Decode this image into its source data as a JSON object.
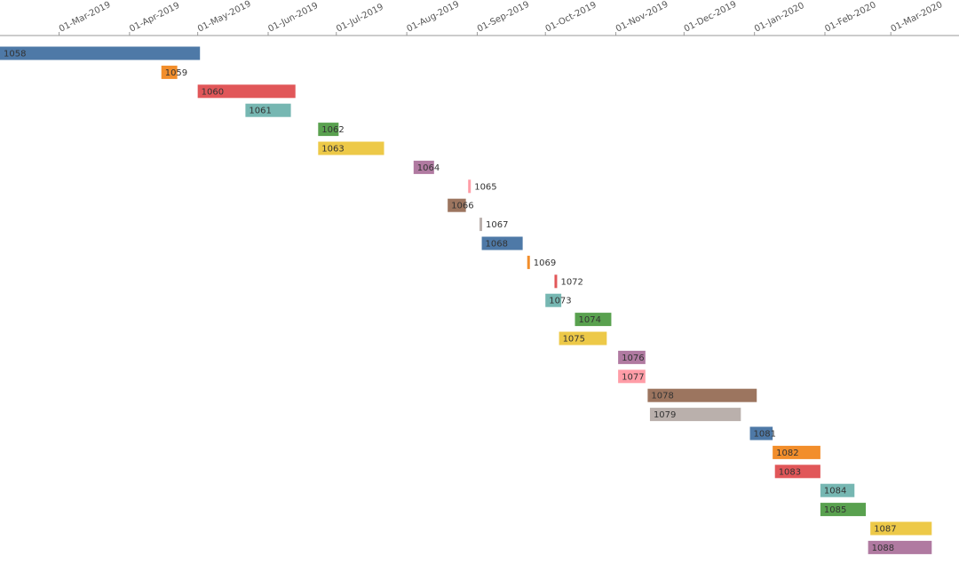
{
  "chart_data": {
    "type": "gantt",
    "title": "",
    "xlabel": "",
    "ylabel": "",
    "x_axis": {
      "type": "date",
      "position": "top",
      "range": [
        "2019-02-03",
        "2020-03-31"
      ],
      "tick_labels": [
        {
          "label": "01-Mar-2019",
          "date": "2019-03-01"
        },
        {
          "label": "01-Apr-2019",
          "date": "2019-04-01"
        },
        {
          "label": "01-May-2019",
          "date": "2019-05-01"
        },
        {
          "label": "01-Jun-2019",
          "date": "2019-06-01"
        },
        {
          "label": "01-Jul-2019",
          "date": "2019-07-01"
        },
        {
          "label": "01-Aug-2019",
          "date": "2019-08-01"
        },
        {
          "label": "01-Sep-2019",
          "date": "2019-09-01"
        },
        {
          "label": "01-Oct-2019",
          "date": "2019-10-01"
        },
        {
          "label": "01-Nov-2019",
          "date": "2019-11-01"
        },
        {
          "label": "01-Dec-2019",
          "date": "2019-12-01"
        },
        {
          "label": "01-Jan-2020",
          "date": "2020-01-01"
        },
        {
          "label": "01-Feb-2020",
          "date": "2020-02-01"
        },
        {
          "label": "01-Mar-2020",
          "date": "2020-03-01"
        }
      ]
    },
    "grid": false,
    "legend": "none",
    "tasks": [
      {
        "label": "1058",
        "start": "2019-02-03",
        "end": "2019-05-02",
        "color": "#4e79a7"
      },
      {
        "label": "1059",
        "start": "2019-04-15",
        "end": "2019-04-22",
        "color": "#f28e2b"
      },
      {
        "label": "1060",
        "start": "2019-05-01",
        "end": "2019-06-13",
        "color": "#e15759"
      },
      {
        "label": "1061",
        "start": "2019-05-22",
        "end": "2019-06-11",
        "color": "#76b7b2"
      },
      {
        "label": "1062",
        "start": "2019-06-23",
        "end": "2019-07-02",
        "color": "#59a14f"
      },
      {
        "label": "1063",
        "start": "2019-06-23",
        "end": "2019-07-22",
        "color": "#edc948"
      },
      {
        "label": "1064",
        "start": "2019-08-04",
        "end": "2019-08-13",
        "color": "#b07aa1"
      },
      {
        "label": "1065",
        "start": "2019-08-28",
        "end": "2019-08-29",
        "color": "#ff9da7"
      },
      {
        "label": "1066",
        "start": "2019-08-19",
        "end": "2019-08-27",
        "color": "#9c755f"
      },
      {
        "label": "1067",
        "start": "2019-09-02",
        "end": "2019-09-03",
        "color": "#bab0ac"
      },
      {
        "label": "1068",
        "start": "2019-09-03",
        "end": "2019-09-21",
        "color": "#4e79a7"
      },
      {
        "label": "1069",
        "start": "2019-09-23",
        "end": "2019-09-24",
        "color": "#f28e2b"
      },
      {
        "label": "1072",
        "start": "2019-10-05",
        "end": "2019-10-06",
        "color": "#e15759"
      },
      {
        "label": "1073",
        "start": "2019-10-01",
        "end": "2019-10-08",
        "color": "#76b7b2"
      },
      {
        "label": "1074",
        "start": "2019-10-14",
        "end": "2019-10-30",
        "color": "#59a14f"
      },
      {
        "label": "1075",
        "start": "2019-10-07",
        "end": "2019-10-28",
        "color": "#edc948"
      },
      {
        "label": "1076",
        "start": "2019-11-02",
        "end": "2019-11-14",
        "color": "#b07aa1"
      },
      {
        "label": "1077",
        "start": "2019-11-02",
        "end": "2019-11-14",
        "color": "#ff9da7"
      },
      {
        "label": "1078",
        "start": "2019-11-15",
        "end": "2020-01-02",
        "color": "#9c755f"
      },
      {
        "label": "1079",
        "start": "2019-11-16",
        "end": "2019-12-26",
        "color": "#bab0ac"
      },
      {
        "label": "1081",
        "start": "2019-12-30",
        "end": "2020-01-09",
        "color": "#4e79a7"
      },
      {
        "label": "1082",
        "start": "2020-01-09",
        "end": "2020-01-30",
        "color": "#f28e2b"
      },
      {
        "label": "1083",
        "start": "2020-01-10",
        "end": "2020-01-30",
        "color": "#e15759"
      },
      {
        "label": "1084",
        "start": "2020-01-30",
        "end": "2020-02-14",
        "color": "#76b7b2"
      },
      {
        "label": "1085",
        "start": "2020-01-30",
        "end": "2020-02-19",
        "color": "#59a14f"
      },
      {
        "label": "1087",
        "start": "2020-02-21",
        "end": "2020-03-19",
        "color": "#edc948"
      },
      {
        "label": "1088",
        "start": "2020-02-20",
        "end": "2020-03-19",
        "color": "#b07aa1"
      }
    ]
  }
}
